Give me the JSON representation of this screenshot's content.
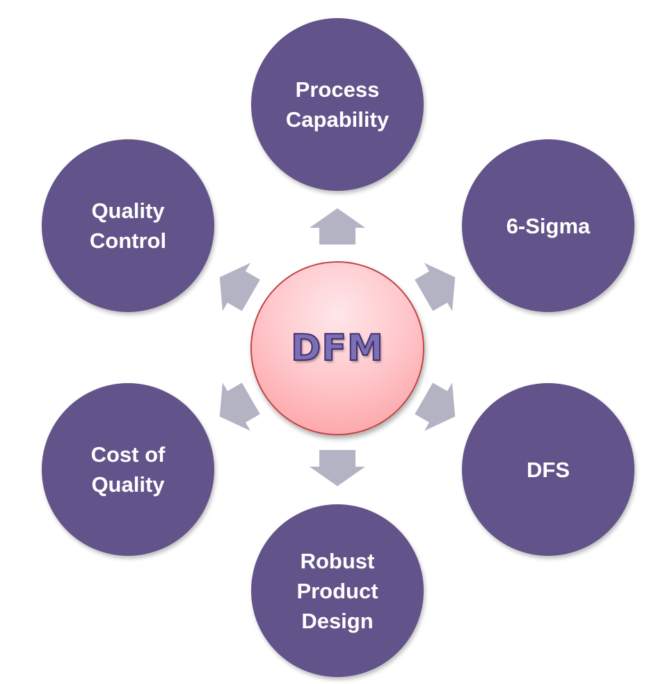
{
  "center": {
    "label": "DFM",
    "fill_color": "#ffc8cc",
    "border_color": "#c04444"
  },
  "nodes": [
    {
      "id": "process-capability",
      "label": "Process\nCapability"
    },
    {
      "id": "six-sigma",
      "label": "6-Sigma"
    },
    {
      "id": "dfs",
      "label": "DFS"
    },
    {
      "id": "robust-product-design",
      "label": "Robust\nProduct\nDesign"
    },
    {
      "id": "cost-of-quality",
      "label": "Cost of\nQuality"
    },
    {
      "id": "quality-control",
      "label": "Quality\nControl"
    }
  ],
  "colors": {
    "node_fill": "#62538a",
    "node_text": "#ffffff",
    "arrow_fill": "#b4b3c4"
  }
}
